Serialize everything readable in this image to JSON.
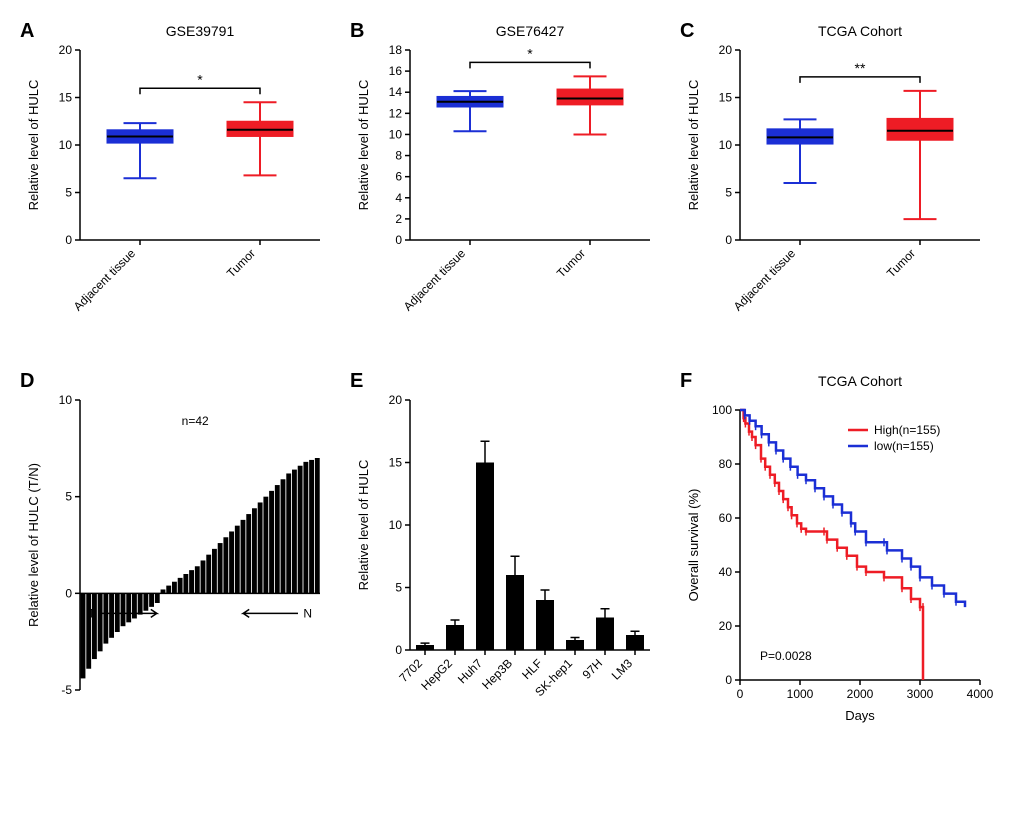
{
  "colors": {
    "adjacent": "#1b2fd5",
    "tumor": "#ee1c25",
    "axis": "#000000",
    "bg": "#ffffff",
    "bar": "#000000",
    "high": "#ee1c25",
    "low": "#1b2fd5"
  },
  "panelA": {
    "letter": "A",
    "title": "GSE39791",
    "ylabel": "Relative level of HULC",
    "ylim": [
      0,
      20
    ],
    "yticks": [
      0,
      5,
      10,
      15,
      20
    ],
    "xcats": [
      "Adjacent tissue",
      "Tumor"
    ],
    "sig": "*",
    "boxes": [
      {
        "min": 6.5,
        "q1": 10.2,
        "med": 10.9,
        "q3": 11.6,
        "max": 12.3,
        "color": "#1b2fd5"
      },
      {
        "min": 6.8,
        "q1": 10.9,
        "med": 11.6,
        "q3": 12.5,
        "max": 14.5,
        "color": "#ee1c25"
      }
    ]
  },
  "panelB": {
    "letter": "B",
    "title": "GSE76427",
    "ylabel": "Relative level of HULC",
    "ylim": [
      0,
      18
    ],
    "yticks": [
      0,
      2,
      4,
      6,
      8,
      10,
      12,
      14,
      16,
      18
    ],
    "xcats": [
      "Adjacent tissue",
      "Tumor"
    ],
    "sig": "*",
    "boxes": [
      {
        "min": 10.3,
        "q1": 12.6,
        "med": 13.1,
        "q3": 13.6,
        "max": 14.1,
        "color": "#1b2fd5"
      },
      {
        "min": 10.0,
        "q1": 12.8,
        "med": 13.4,
        "q3": 14.3,
        "max": 15.5,
        "color": "#ee1c25"
      }
    ]
  },
  "panelC": {
    "letter": "C",
    "title": "TCGA Cohort",
    "ylabel": "Relative level of HULC",
    "ylim": [
      0,
      20
    ],
    "yticks": [
      0,
      5,
      10,
      15,
      20
    ],
    "xcats": [
      "Adjacent tissue",
      "Tumor"
    ],
    "sig": "**",
    "boxes": [
      {
        "min": 6.0,
        "q1": 10.1,
        "med": 10.8,
        "q3": 11.7,
        "max": 12.7,
        "color": "#1b2fd5"
      },
      {
        "min": 2.2,
        "q1": 10.5,
        "med": 11.5,
        "q3": 12.8,
        "max": 15.7,
        "color": "#ee1c25"
      }
    ]
  },
  "panelD": {
    "letter": "D",
    "ylabel": "Relative level of HULC (T/N)",
    "n_label": "n=42",
    "ylim": [
      -5,
      10
    ],
    "yticks": [
      -5,
      0,
      5,
      10
    ],
    "cohort_labels": {
      "left": "T",
      "right": "N"
    },
    "values": [
      -4.4,
      -3.9,
      -3.4,
      -3.0,
      -2.6,
      -2.3,
      -2.0,
      -1.7,
      -1.5,
      -1.3,
      -1.1,
      -0.9,
      -0.7,
      -0.5,
      0.2,
      0.4,
      0.6,
      0.8,
      1.0,
      1.2,
      1.4,
      1.7,
      2.0,
      2.3,
      2.6,
      2.9,
      3.2,
      3.5,
      3.8,
      4.1,
      4.4,
      4.7,
      5.0,
      5.3,
      5.6,
      5.9,
      6.2,
      6.4,
      6.6,
      6.8,
      6.9,
      7.0
    ]
  },
  "panelE": {
    "letter": "E",
    "ylabel": "Relative level of HULC",
    "ylim": [
      0,
      20
    ],
    "yticks": [
      0,
      5,
      10,
      15,
      20
    ],
    "xcats": [
      "7702",
      "HepG2",
      "Huh7",
      "Hep3B",
      "HLF",
      "SK-hep1",
      "97H",
      "LM3"
    ],
    "values": [
      0.4,
      2.0,
      15.0,
      6.0,
      4.0,
      0.8,
      2.6,
      1.2
    ],
    "errs": [
      0.15,
      0.4,
      1.7,
      1.5,
      0.8,
      0.2,
      0.7,
      0.3
    ]
  },
  "panelF": {
    "letter": "F",
    "title": "TCGA Cohort",
    "ylabel": "Overall survival (%)",
    "xlabel": "Days",
    "pval": "P=0.0028",
    "legend": [
      {
        "label": "High(n=155)",
        "color": "#ee1c25"
      },
      {
        "label": "low(n=155)",
        "color": "#1b2fd5"
      }
    ],
    "xlim": [
      0,
      4000
    ],
    "xticks": [
      0,
      1000,
      2000,
      3000,
      4000
    ],
    "ylim": [
      0,
      100
    ],
    "yticks": [
      0,
      20,
      40,
      60,
      80,
      100
    ],
    "high": [
      [
        0,
        100
      ],
      [
        60,
        97
      ],
      [
        90,
        95
      ],
      [
        150,
        92
      ],
      [
        200,
        90
      ],
      [
        260,
        87
      ],
      [
        350,
        82
      ],
      [
        420,
        79
      ],
      [
        500,
        76
      ],
      [
        580,
        73
      ],
      [
        650,
        70
      ],
      [
        720,
        67
      ],
      [
        800,
        64
      ],
      [
        860,
        61
      ],
      [
        950,
        58
      ],
      [
        1020,
        56
      ],
      [
        1100,
        55
      ],
      [
        1400,
        55
      ],
      [
        1450,
        52
      ],
      [
        1620,
        49
      ],
      [
        1780,
        46
      ],
      [
        1950,
        42
      ],
      [
        2100,
        40
      ],
      [
        2400,
        38
      ],
      [
        2700,
        34
      ],
      [
        2850,
        30
      ],
      [
        3000,
        27
      ],
      [
        3050,
        27
      ],
      [
        3050,
        0
      ]
    ],
    "low": [
      [
        0,
        100
      ],
      [
        80,
        98
      ],
      [
        160,
        96
      ],
      [
        260,
        94
      ],
      [
        360,
        91
      ],
      [
        480,
        88
      ],
      [
        600,
        85
      ],
      [
        720,
        82
      ],
      [
        840,
        79
      ],
      [
        960,
        76
      ],
      [
        1100,
        74
      ],
      [
        1250,
        71
      ],
      [
        1400,
        68
      ],
      [
        1550,
        65
      ],
      [
        1700,
        62
      ],
      [
        1850,
        58
      ],
      [
        1920,
        55
      ],
      [
        2100,
        54
      ],
      [
        2100,
        51
      ],
      [
        2400,
        51
      ],
      [
        2450,
        48
      ],
      [
        2700,
        45
      ],
      [
        2850,
        42
      ],
      [
        3000,
        38
      ],
      [
        3200,
        35
      ],
      [
        3400,
        32
      ],
      [
        3600,
        29
      ],
      [
        3750,
        27
      ]
    ]
  }
}
